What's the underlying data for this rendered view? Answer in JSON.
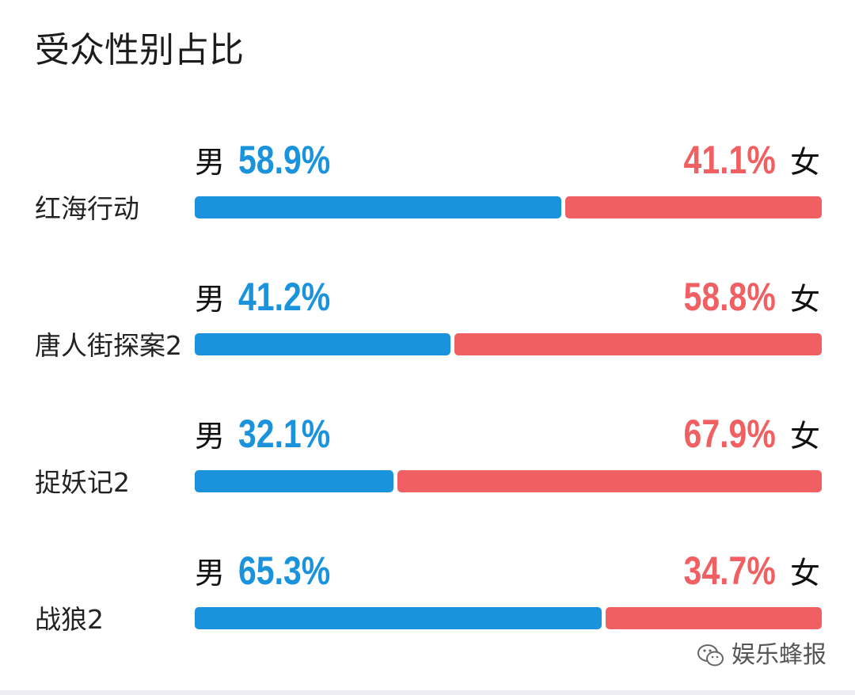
{
  "chart_data": {
    "type": "bar",
    "title": "受众性别占比",
    "categories": [
      "红海行动",
      "唐人街探案2",
      "捉妖记2",
      "战狼2"
    ],
    "series": [
      {
        "name": "男",
        "values": [
          58.9,
          41.2,
          32.1,
          65.3
        ]
      },
      {
        "name": "女",
        "values": [
          41.1,
          58.8,
          67.9,
          34.7
        ]
      }
    ],
    "value_labels": {
      "male": [
        "58.9%",
        "41.2%",
        "32.1%",
        "65.3%"
      ],
      "female": [
        "41.1%",
        "58.8%",
        "67.9%",
        "34.7%"
      ]
    },
    "stacked": true,
    "orientation": "horizontal",
    "xlim": [
      0,
      100
    ],
    "grid": false,
    "colors": {
      "male": "#1a93dc",
      "female": "#f06063"
    }
  },
  "labels": {
    "male": "男",
    "female": "女"
  },
  "watermark": {
    "text": "娱乐蜂报",
    "icon": "wechat-icon"
  }
}
